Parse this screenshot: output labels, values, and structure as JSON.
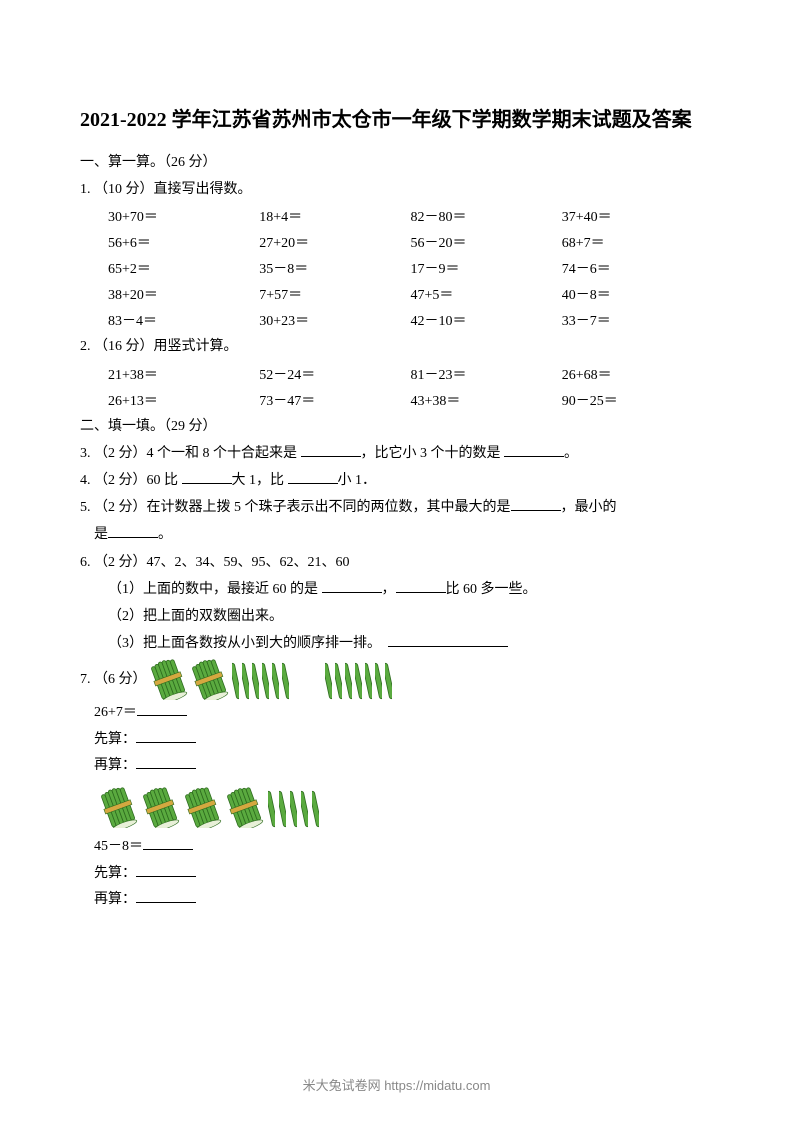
{
  "title": "2021-2022 学年江苏省苏州市太仓市一年级下学期数学期末试题及答案",
  "section1": {
    "heading": "一、算一算。（26 分）",
    "q1": {
      "label": "1. （10 分）直接写出得数。",
      "items": [
        "30+70＝",
        "18+4＝",
        "82－80＝",
        "37+40＝",
        "56+6＝",
        "27+20＝",
        "56－20＝",
        "68+7＝",
        "65+2＝",
        "35－8＝",
        "17－9＝",
        "74－6＝",
        "38+20＝",
        "7+57＝",
        "47+5＝",
        "40－8＝",
        "83－4＝",
        "30+23＝",
        "42－10＝",
        "33－7＝"
      ]
    },
    "q2": {
      "label": "2. （16 分）用竖式计算。",
      "items": [
        "21+38＝",
        "52－24＝",
        "81－23＝",
        "26+68＝",
        "26+13＝",
        "73－47＝",
        "43+38＝",
        "90－25＝"
      ]
    }
  },
  "section2": {
    "heading": "二、填一填。（29 分）",
    "q3": {
      "prefix": "3. （2 分）4 个一和 8 个十合起来是 ",
      "mid": "，比它小 3 个十的数是 ",
      "suffix": "。"
    },
    "q4": {
      "prefix": "4. （2 分）60 比 ",
      "mid": "大 1，比 ",
      "suffix": "小 1．"
    },
    "q5": {
      "prefix": "5. （2 分）在计数器上拨 5 个珠子表示出不同的两位数，其中最大的是",
      "mid": "，最小的",
      "line2_prefix": "是",
      "line2_suffix": "。"
    },
    "q6": {
      "label": "6. （2 分）47、2、34、59、95、62、21、60",
      "part1_prefix": "（1）上面的数中，最接近 60 的是 ",
      "part1_mid": "，",
      "part1_suffix": "比 60 多一些。",
      "part2": "（2）把上面的双数圈出来。",
      "part3_prefix": "（3）把上面各数按从小到大的顺序排一排。"
    },
    "q7": {
      "label": "7. （6 分）",
      "eq1": "26+7＝",
      "first": "先算：",
      "then": "再算：",
      "eq2": "45－8＝",
      "sticks1": {
        "bundles": 2,
        "singles": 6,
        "gap_singles": 7
      },
      "sticks2": {
        "bundles": 4,
        "singles": 5
      }
    }
  },
  "footer": "米大兔试卷网 https://midatu.com",
  "colors": {
    "stick_fill": "#5aaa3f",
    "stick_stroke": "#2d6b1e",
    "band": "#d4a840"
  }
}
